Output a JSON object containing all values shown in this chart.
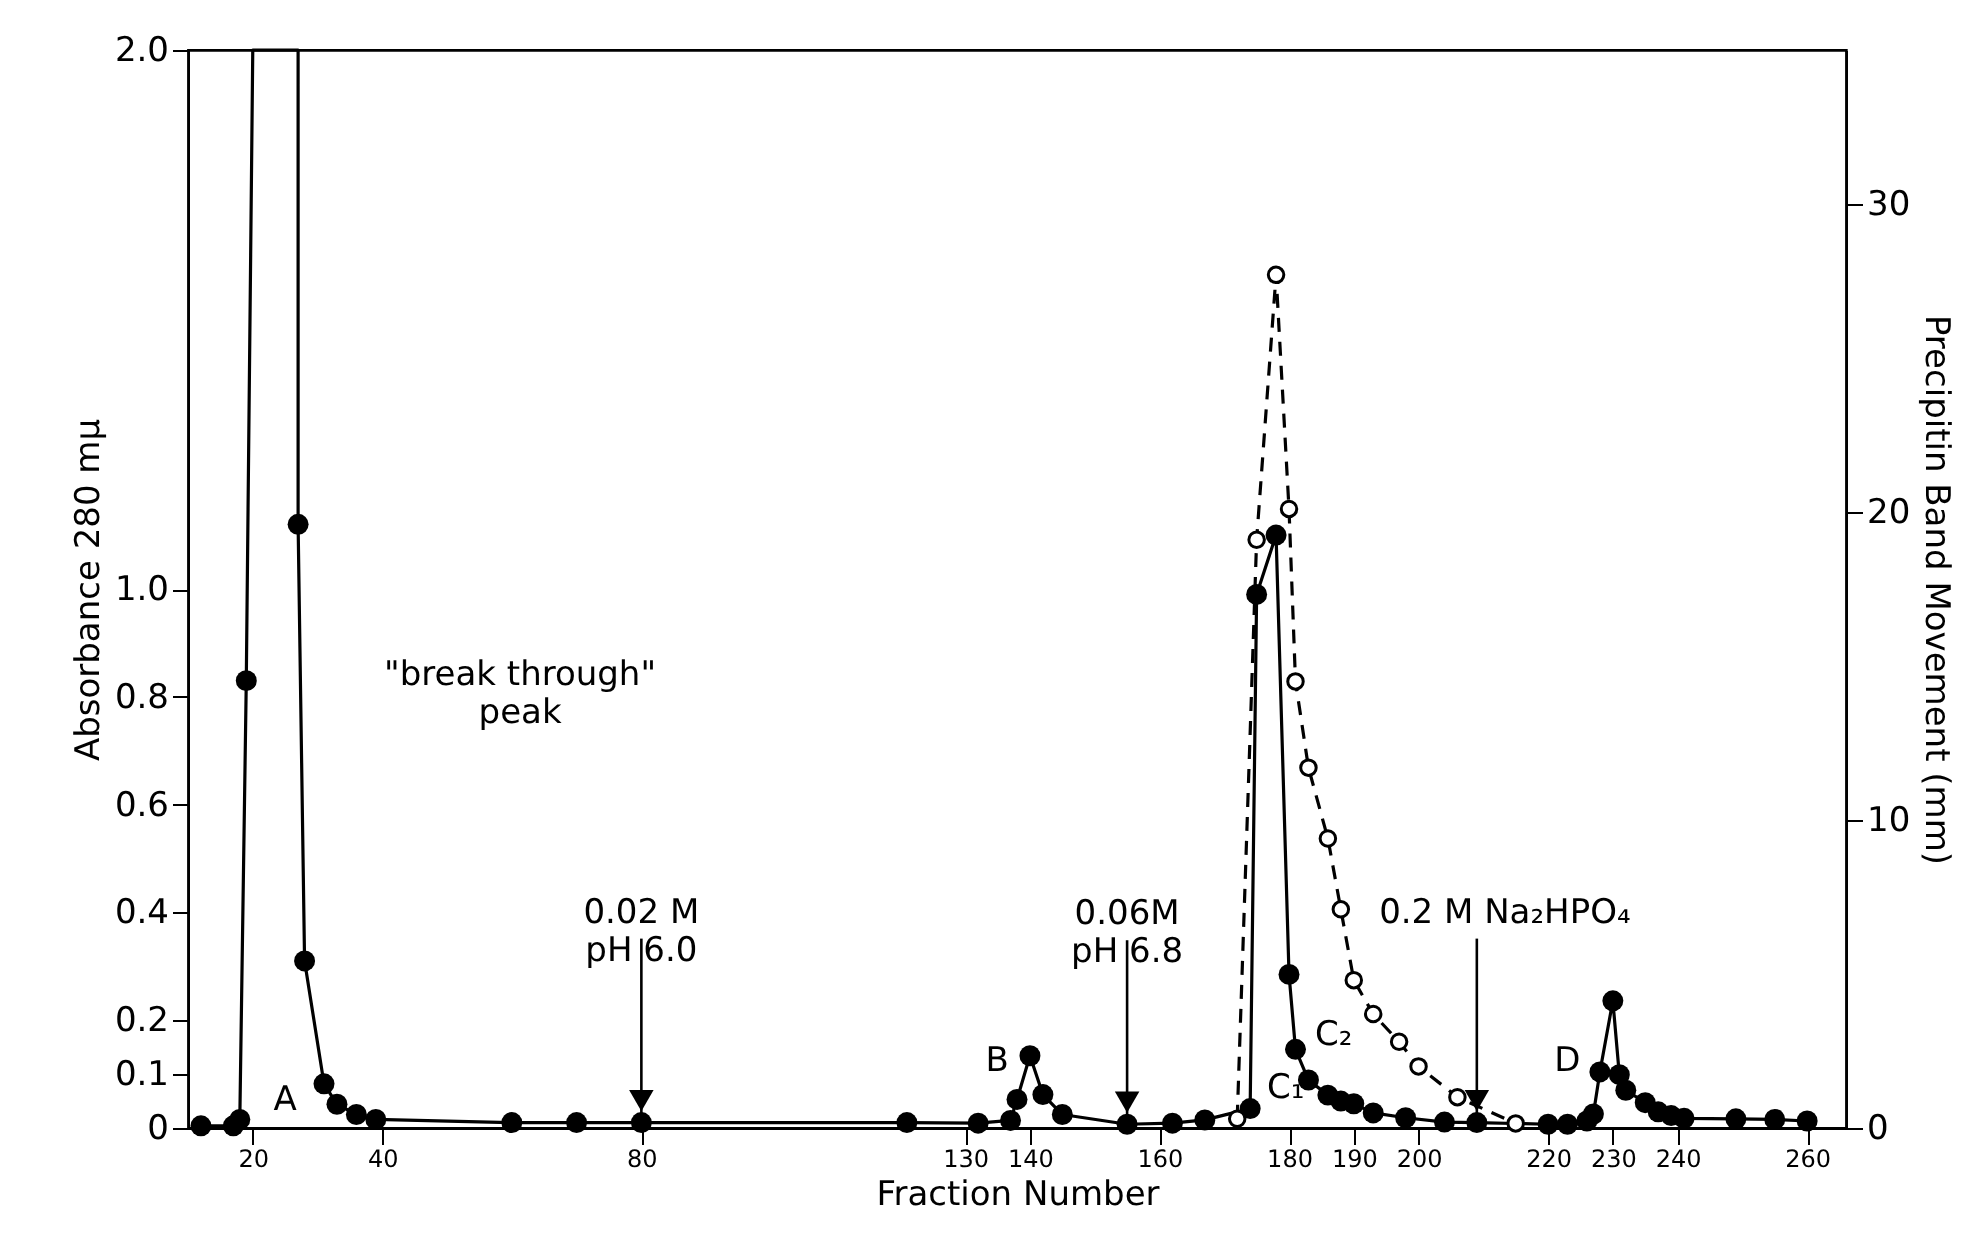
{
  "chart_data": {
    "type": "line",
    "xlabel": "Fraction Number",
    "ylabel": "Absorbance  280 mμ",
    "y2label": "Precipitin Band Movement (mm)",
    "xlim": [
      10,
      266
    ],
    "xticks": [
      20,
      40,
      80,
      130,
      140,
      160,
      180,
      190,
      200,
      220,
      230,
      240,
      260
    ],
    "ylim": [
      0,
      2.0
    ],
    "yticks": [
      {
        "value": 0,
        "label": "0"
      },
      0.1,
      0.2,
      0.4,
      0.6,
      0.8,
      {
        "value": 1.0,
        "label": "1.0"
      },
      {
        "value": 2.0,
        "label": "2.0"
      }
    ],
    "y2lim": [
      0,
      35
    ],
    "y2ticks": [
      0,
      10,
      20,
      30
    ],
    "grid": false,
    "marker": "circle",
    "line_style": "solid",
    "series": [
      {
        "color": "#000000",
        "x": [
          12,
          17,
          18,
          19,
          20,
          27,
          27,
          28,
          31,
          33,
          36,
          39,
          60,
          70,
          80,
          121,
          132,
          137,
          138,
          140,
          142,
          145,
          155,
          162,
          167,
          174,
          175,
          178,
          180,
          181,
          183,
          186,
          188,
          190,
          193,
          198,
          204,
          209,
          220,
          223,
          226,
          227,
          228,
          230,
          231,
          232,
          235,
          237,
          239,
          241,
          249,
          255,
          260
        ],
        "values": [
          0.004,
          0.004,
          0.016,
          0.83,
          2.0,
          2.0,
          1.12,
          0.31,
          0.082,
          0.044,
          0.025,
          0.016,
          0.01,
          0.01,
          0.01,
          0.01,
          0.009,
          0.014,
          0.053,
          0.134,
          0.062,
          0.025,
          0.007,
          0.009,
          0.015,
          0.036,
          0.99,
          1.1,
          0.285,
          0.146,
          0.089,
          0.061,
          0.05,
          0.045,
          0.028,
          0.019,
          0.011,
          0.01,
          0.007,
          0.007,
          0.013,
          0.026,
          0.104,
          0.236,
          0.099,
          0.07,
          0.047,
          0.03,
          0.023,
          0.018,
          0.017,
          0.016,
          0.013
        ]
      },
      {
        "color": "#000000",
        "axis": "y2",
        "line_style": "dashed",
        "x": [
          172,
          175,
          178,
          180,
          181,
          183,
          186,
          188,
          190,
          193,
          197,
          200,
          206,
          215
        ],
        "values": [
          0.3,
          19.1,
          27.7,
          20.1,
          14.5,
          11.7,
          9.4,
          7.1,
          4.8,
          3.7,
          2.8,
          2.0,
          1.0,
          0.15
        ]
      }
    ],
    "annotations": [
      {
        "text": "0.02 M\npH 6.0",
        "x": 80,
        "y": 0.01
      },
      {
        "text": "0.06M\npH 6.8",
        "x": 155,
        "y": 0.007
      },
      {
        "text": "0.2 M Na₂HPO₄",
        "x": 209,
        "y": 0.01
      },
      "\"break through\"\npeak",
      "A",
      "B",
      "C₁",
      "C₂",
      "D"
    ]
  }
}
